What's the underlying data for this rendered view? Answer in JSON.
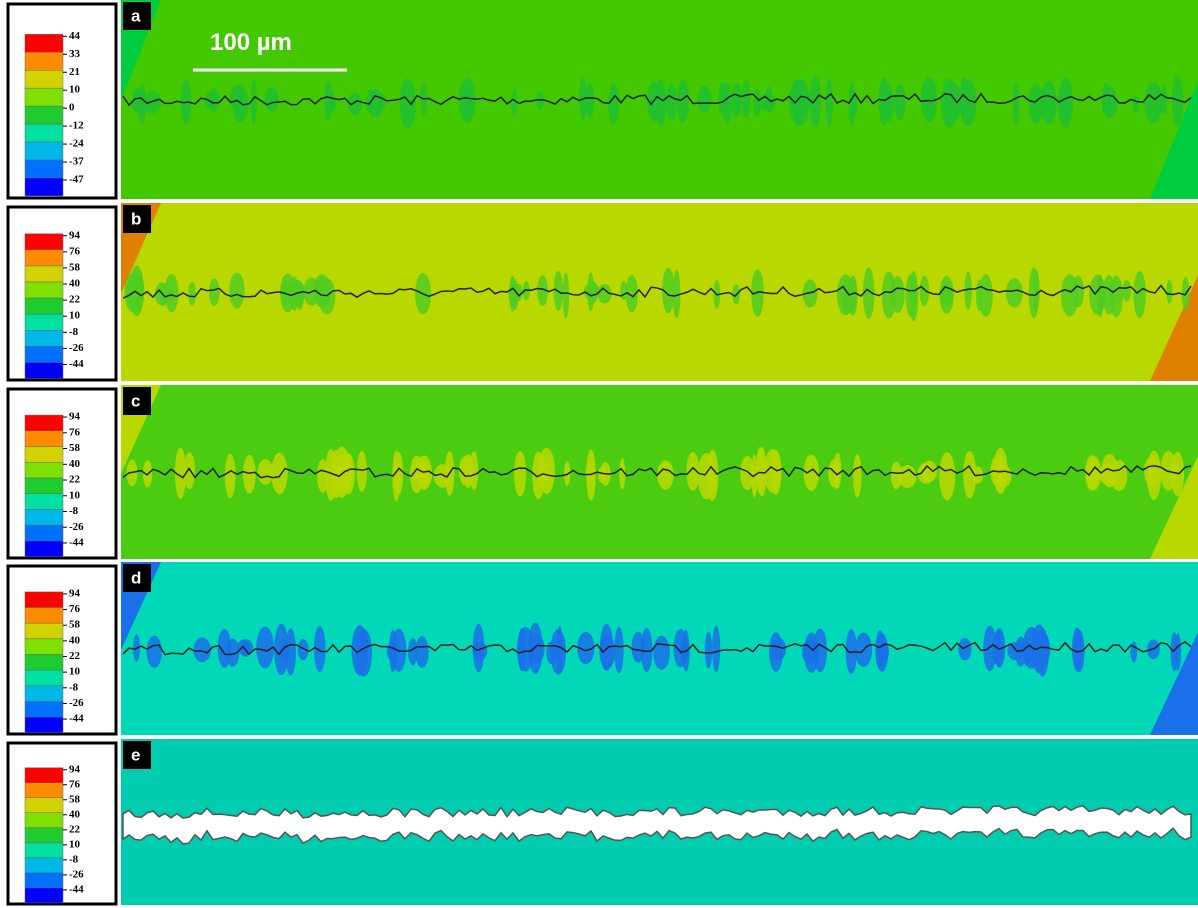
{
  "scale_bar": "100 µm",
  "panels": [
    {
      "label": "a",
      "legend_ticks": [
        44,
        33,
        21,
        10,
        0,
        -12,
        -24,
        -37,
        -47
      ]
    },
    {
      "label": "b",
      "legend_ticks": [
        94,
        76,
        58,
        40,
        22,
        10,
        -8,
        -26,
        -44
      ]
    },
    {
      "label": "c",
      "legend_ticks": [
        94,
        76,
        58,
        40,
        22,
        10,
        -8,
        -26,
        -44
      ]
    },
    {
      "label": "d",
      "legend_ticks": [
        94,
        76,
        58,
        40,
        22,
        10,
        -8,
        -26,
        -44
      ]
    },
    {
      "label": "e",
      "legend_ticks": [
        94,
        76,
        58,
        40,
        22,
        10,
        -8,
        -26,
        -44
      ]
    }
  ]
}
